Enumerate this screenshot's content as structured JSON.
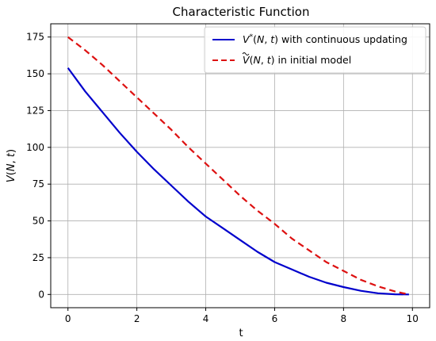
{
  "chart_data": {
    "type": "line",
    "title": "Characteristic Function",
    "xlabel": "t",
    "ylabel": "V(N, t)",
    "xlim": [
      -0.5,
      10.5
    ],
    "ylim": [
      -9,
      184
    ],
    "xticks": [
      0,
      2,
      4,
      6,
      8,
      10
    ],
    "yticks": [
      0,
      25,
      50,
      75,
      100,
      125,
      150,
      175
    ],
    "grid": true,
    "legend_position": "top-right",
    "series": [
      {
        "name": "V*(N, t) with continuous updating",
        "color": "#0000cc",
        "style": "solid",
        "x": [
          0,
          0.5,
          1,
          1.5,
          2,
          2.5,
          3,
          3.5,
          4,
          4.5,
          5,
          5.5,
          6,
          6.5,
          7,
          7.5,
          8,
          8.5,
          9,
          9.5,
          9.9
        ],
        "y": [
          154,
          138,
          124,
          110,
          97,
          85,
          74,
          63,
          53,
          45,
          37,
          29,
          22,
          17,
          12,
          8,
          5,
          2.5,
          0.8,
          0.1,
          0
        ]
      },
      {
        "name": "V~(N, t) in initial model",
        "color": "#dd1111",
        "style": "dashed",
        "x": [
          0,
          0.5,
          1,
          1.5,
          2,
          2.5,
          3,
          3.5,
          4,
          4.5,
          5,
          5.5,
          6,
          6.5,
          7,
          7.5,
          8,
          8.5,
          9,
          9.5,
          9.9
        ],
        "y": [
          175,
          166,
          156,
          145,
          134,
          123,
          112,
          100,
          89,
          78,
          67,
          57,
          48,
          38,
          30,
          22,
          16,
          10,
          5.5,
          2,
          0
        ]
      }
    ]
  }
}
